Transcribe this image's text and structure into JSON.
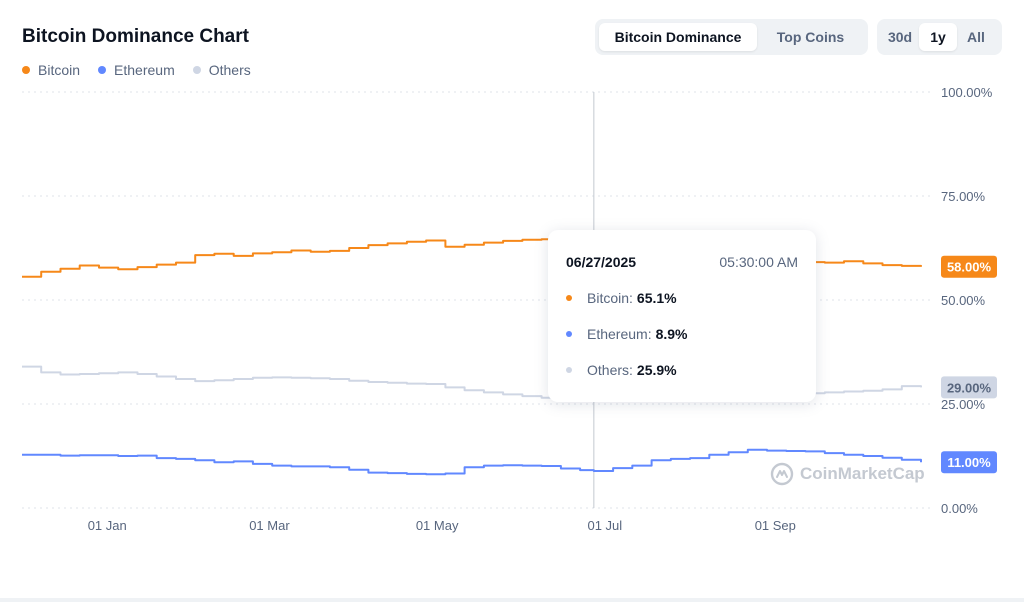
{
  "header": {
    "title": "Bitcoin Dominance Chart"
  },
  "tabs": {
    "view": [
      {
        "label": "Bitcoin Dominance",
        "active": true
      },
      {
        "label": "Top Coins",
        "active": false
      }
    ],
    "range": [
      {
        "label": "30d",
        "active": false
      },
      {
        "label": "1y",
        "active": true
      },
      {
        "label": "All",
        "active": false
      }
    ]
  },
  "tooltip": {
    "date": "06/27/2025",
    "time": "05:30:00 AM",
    "rows": [
      {
        "label": "Bitcoin:",
        "value": "65.1%",
        "color": "#f68819"
      },
      {
        "label": "Ethereum:",
        "value": "8.9%",
        "color": "#6188ff"
      },
      {
        "label": "Others:",
        "value": "25.9%",
        "color": "#cfd6e4"
      }
    ]
  },
  "watermark": "CoinMarketCap",
  "chart_data": {
    "type": "line",
    "title": "Bitcoin Dominance Chart",
    "ylim": [
      0,
      100
    ],
    "y_ticks": [
      "100.00%",
      "75.00%",
      "50.00%",
      "25.00%",
      "0.00%"
    ],
    "y_tick_values": [
      100,
      75,
      50,
      25,
      0
    ],
    "x_range": [
      "2024-12-01",
      "2025-10-28"
    ],
    "x_ticks": [
      {
        "label": "01 Jan",
        "date": "2025-01-01"
      },
      {
        "label": "01 Mar",
        "date": "2025-03-01"
      },
      {
        "label": "01 May",
        "date": "2025-05-01"
      },
      {
        "label": "01 Jul",
        "date": "2025-07-01"
      },
      {
        "label": "01 Sep",
        "date": "2025-09-01"
      }
    ],
    "grid": true,
    "legend_position": "top-left",
    "crosshair_date": "2025-06-27",
    "series": [
      {
        "name": "Bitcoin",
        "color": "#f68819",
        "last_value_label": "58.00%",
        "points": [
          [
            "2024-12-01",
            55.6
          ],
          [
            "2024-12-08",
            56.8
          ],
          [
            "2024-12-15",
            57.5
          ],
          [
            "2024-12-22",
            58.3
          ],
          [
            "2024-12-29",
            57.8
          ],
          [
            "2025-01-05",
            57.4
          ],
          [
            "2025-01-12",
            57.9
          ],
          [
            "2025-01-19",
            58.5
          ],
          [
            "2025-01-26",
            59.0
          ],
          [
            "2025-02-02",
            60.8
          ],
          [
            "2025-02-09",
            61.1
          ],
          [
            "2025-02-16",
            60.6
          ],
          [
            "2025-02-23",
            61.2
          ],
          [
            "2025-03-02",
            61.5
          ],
          [
            "2025-03-09",
            61.9
          ],
          [
            "2025-03-16",
            61.6
          ],
          [
            "2025-03-23",
            61.8
          ],
          [
            "2025-03-30",
            62.5
          ],
          [
            "2025-04-06",
            63.2
          ],
          [
            "2025-04-13",
            63.6
          ],
          [
            "2025-04-20",
            64.0
          ],
          [
            "2025-04-27",
            64.3
          ],
          [
            "2025-05-04",
            62.8
          ],
          [
            "2025-05-11",
            63.3
          ],
          [
            "2025-05-18",
            63.8
          ],
          [
            "2025-05-25",
            64.2
          ],
          [
            "2025-06-01",
            64.5
          ],
          [
            "2025-06-08",
            64.6
          ],
          [
            "2025-06-15",
            64.9
          ],
          [
            "2025-06-22",
            65.0
          ],
          [
            "2025-06-27",
            65.1
          ],
          [
            "2025-07-04",
            64.8
          ],
          [
            "2025-07-11",
            63.6
          ],
          [
            "2025-07-18",
            62.5
          ],
          [
            "2025-07-25",
            61.8
          ],
          [
            "2025-08-01",
            61.5
          ],
          [
            "2025-08-08",
            60.8
          ],
          [
            "2025-08-15",
            60.2
          ],
          [
            "2025-08-22",
            59.8
          ],
          [
            "2025-08-29",
            59.6
          ],
          [
            "2025-09-05",
            59.4
          ],
          [
            "2025-09-12",
            59.1
          ],
          [
            "2025-09-19",
            59.0
          ],
          [
            "2025-09-26",
            59.3
          ],
          [
            "2025-10-03",
            58.8
          ],
          [
            "2025-10-10",
            58.4
          ],
          [
            "2025-10-17",
            58.2
          ],
          [
            "2025-10-24",
            58.0
          ]
        ]
      },
      {
        "name": "Ethereum",
        "color": "#6188ff",
        "last_value_label": "11.00%",
        "points": [
          [
            "2024-12-01",
            12.8
          ],
          [
            "2024-12-08",
            12.8
          ],
          [
            "2024-12-15",
            12.6
          ],
          [
            "2024-12-22",
            12.7
          ],
          [
            "2024-12-29",
            12.7
          ],
          [
            "2025-01-05",
            12.5
          ],
          [
            "2025-01-12",
            12.6
          ],
          [
            "2025-01-19",
            12.0
          ],
          [
            "2025-01-26",
            11.8
          ],
          [
            "2025-02-02",
            11.5
          ],
          [
            "2025-02-09",
            11.0
          ],
          [
            "2025-02-16",
            11.2
          ],
          [
            "2025-02-23",
            10.6
          ],
          [
            "2025-03-02",
            10.2
          ],
          [
            "2025-03-09",
            10.0
          ],
          [
            "2025-03-16",
            10.0
          ],
          [
            "2025-03-23",
            9.8
          ],
          [
            "2025-03-30",
            9.2
          ],
          [
            "2025-04-06",
            8.5
          ],
          [
            "2025-04-13",
            8.4
          ],
          [
            "2025-04-20",
            8.2
          ],
          [
            "2025-04-27",
            8.1
          ],
          [
            "2025-05-04",
            8.3
          ],
          [
            "2025-05-11",
            9.8
          ],
          [
            "2025-05-18",
            10.2
          ],
          [
            "2025-05-25",
            10.3
          ],
          [
            "2025-06-01",
            10.2
          ],
          [
            "2025-06-08",
            10.1
          ],
          [
            "2025-06-15",
            9.5
          ],
          [
            "2025-06-22",
            9.1
          ],
          [
            "2025-06-27",
            8.9
          ],
          [
            "2025-07-04",
            9.6
          ],
          [
            "2025-07-11",
            10.2
          ],
          [
            "2025-07-18",
            11.5
          ],
          [
            "2025-07-25",
            11.8
          ],
          [
            "2025-08-01",
            12.0
          ],
          [
            "2025-08-08",
            12.8
          ],
          [
            "2025-08-15",
            13.4
          ],
          [
            "2025-08-22",
            14.0
          ],
          [
            "2025-08-29",
            13.8
          ],
          [
            "2025-09-05",
            13.7
          ],
          [
            "2025-09-12",
            13.6
          ],
          [
            "2025-09-19",
            13.2
          ],
          [
            "2025-09-26",
            12.8
          ],
          [
            "2025-10-03",
            12.5
          ],
          [
            "2025-10-10",
            12.1
          ],
          [
            "2025-10-17",
            11.6
          ],
          [
            "2025-10-24",
            11.0
          ]
        ]
      },
      {
        "name": "Others",
        "color": "#cfd6e4",
        "last_value_label": "29.00%",
        "points": [
          [
            "2024-12-01",
            34.0
          ],
          [
            "2024-12-08",
            32.6
          ],
          [
            "2024-12-15",
            32.1
          ],
          [
            "2024-12-22",
            32.2
          ],
          [
            "2024-12-29",
            32.4
          ],
          [
            "2025-01-05",
            32.6
          ],
          [
            "2025-01-12",
            32.2
          ],
          [
            "2025-01-19",
            31.6
          ],
          [
            "2025-01-26",
            31.0
          ],
          [
            "2025-02-02",
            30.5
          ],
          [
            "2025-02-09",
            30.7
          ],
          [
            "2025-02-16",
            31.0
          ],
          [
            "2025-02-23",
            31.3
          ],
          [
            "2025-03-02",
            31.4
          ],
          [
            "2025-03-09",
            31.3
          ],
          [
            "2025-03-16",
            31.2
          ],
          [
            "2025-03-23",
            31.0
          ],
          [
            "2025-03-30",
            30.6
          ],
          [
            "2025-04-06",
            30.3
          ],
          [
            "2025-04-13",
            30.1
          ],
          [
            "2025-04-20",
            29.9
          ],
          [
            "2025-04-27",
            29.8
          ],
          [
            "2025-05-04",
            29.0
          ],
          [
            "2025-05-11",
            28.3
          ],
          [
            "2025-05-18",
            27.8
          ],
          [
            "2025-05-25",
            27.3
          ],
          [
            "2025-06-01",
            26.9
          ],
          [
            "2025-06-08",
            26.5
          ],
          [
            "2025-06-15",
            26.3
          ],
          [
            "2025-06-22",
            26.1
          ],
          [
            "2025-06-27",
            25.9
          ],
          [
            "2025-07-04",
            25.9
          ],
          [
            "2025-07-11",
            26.3
          ],
          [
            "2025-07-18",
            26.5
          ],
          [
            "2025-07-25",
            26.7
          ],
          [
            "2025-08-01",
            26.8
          ],
          [
            "2025-08-08",
            26.9
          ],
          [
            "2025-08-15",
            27.0
          ],
          [
            "2025-08-22",
            27.1
          ],
          [
            "2025-08-29",
            27.3
          ],
          [
            "2025-09-05",
            27.5
          ],
          [
            "2025-09-12",
            27.6
          ],
          [
            "2025-09-19",
            27.8
          ],
          [
            "2025-09-26",
            28.0
          ],
          [
            "2025-10-03",
            28.2
          ],
          [
            "2025-10-10",
            28.5
          ],
          [
            "2025-10-17",
            29.3
          ],
          [
            "2025-10-24",
            29.0
          ]
        ]
      }
    ]
  }
}
